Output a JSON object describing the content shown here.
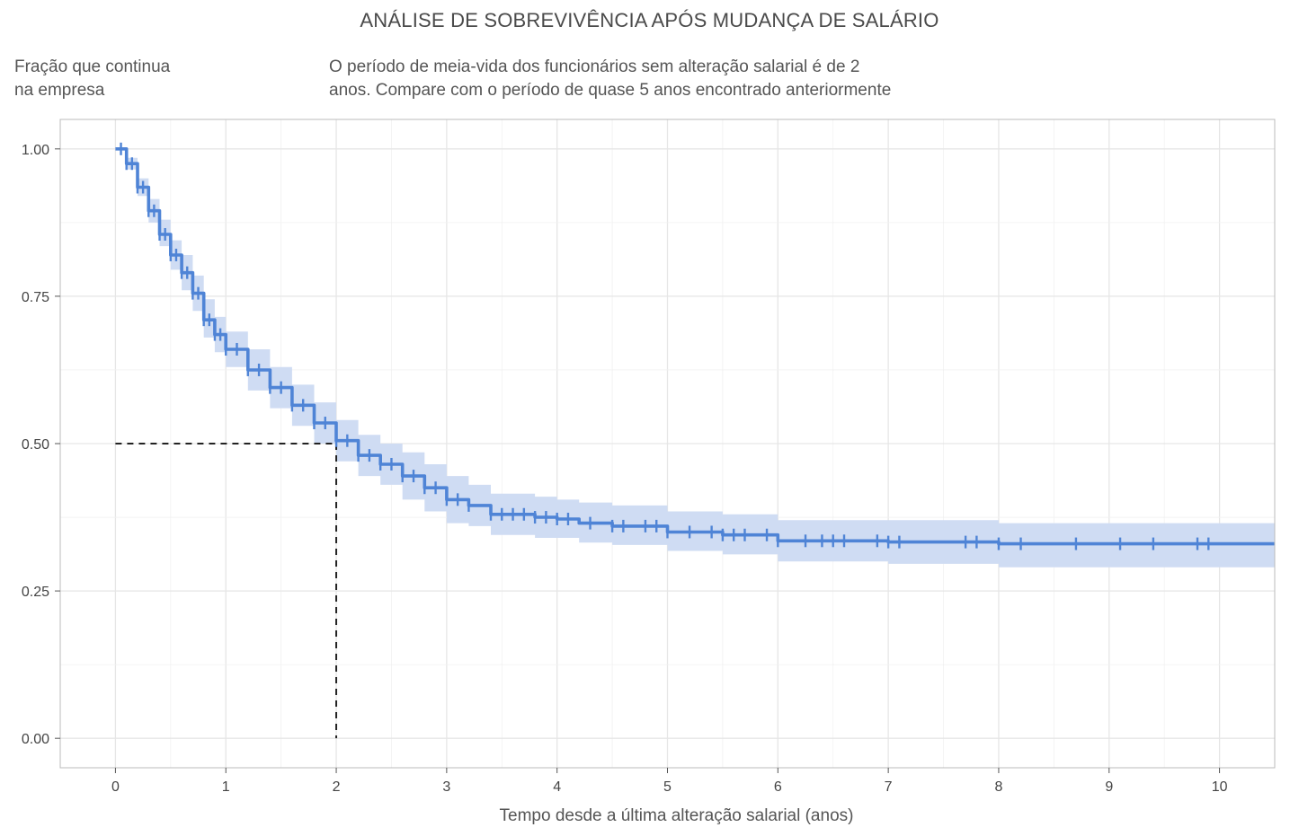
{
  "chart_data": {
    "type": "line",
    "title": "ANÁLISE DE SOBREVIVÊNCIA APÓS MUDANÇA DE SALÁRIO",
    "subtitle": "O período de meia-vida dos funcionários sem alteração salarial é de 2\nanos. Compare com o período de quase 5 anos encontrado anteriormente",
    "ylabel": "Fração que continua\nna empresa",
    "xlabel": "Tempo desde a última alteração salarial (anos)",
    "xlim": [
      -0.5,
      10.5
    ],
    "ylim": [
      -0.05,
      1.05
    ],
    "x_ticks": [
      0,
      1,
      2,
      3,
      4,
      5,
      6,
      7,
      8,
      9,
      10
    ],
    "x_tick_labels": [
      "0",
      "1",
      "2",
      "3",
      "4",
      "5",
      "6",
      "7",
      "8",
      "9",
      "10"
    ],
    "y_ticks": [
      0,
      0.25,
      0.5,
      0.75,
      1.0
    ],
    "y_tick_labels": [
      "0.00",
      "0.25",
      "0.50",
      "0.75",
      "1.00"
    ],
    "grid": true,
    "colors": {
      "line": "#4f84d6",
      "band": "#cfdcf3",
      "reference": "#222222",
      "grid": "#e6e6e6",
      "border": "#bbbbbb"
    },
    "series": [
      {
        "x": [
          0,
          0.1,
          0.2,
          0.3,
          0.4,
          0.5,
          0.6,
          0.7,
          0.8,
          0.9,
          1.0,
          1.2,
          1.4,
          1.6,
          1.8,
          2.0,
          2.2,
          2.4,
          2.6,
          2.8,
          3.0,
          3.2,
          3.4,
          3.6,
          3.8,
          4.0,
          4.2,
          4.5,
          5.0,
          5.5,
          6.0,
          6.5,
          7.0,
          7.5,
          8.0,
          9.0,
          10.0,
          10.5
        ],
        "y": [
          1.0,
          0.975,
          0.935,
          0.895,
          0.855,
          0.82,
          0.79,
          0.755,
          0.71,
          0.685,
          0.66,
          0.625,
          0.595,
          0.565,
          0.535,
          0.505,
          0.48,
          0.465,
          0.445,
          0.425,
          0.405,
          0.395,
          0.38,
          0.38,
          0.375,
          0.372,
          0.365,
          0.36,
          0.35,
          0.345,
          0.335,
          0.335,
          0.333,
          0.333,
          0.33,
          0.33,
          0.33,
          0.33
        ],
        "lower": [
          1.0,
          0.965,
          0.92,
          0.875,
          0.835,
          0.795,
          0.76,
          0.725,
          0.68,
          0.655,
          0.63,
          0.59,
          0.56,
          0.53,
          0.5,
          0.47,
          0.445,
          0.43,
          0.405,
          0.385,
          0.365,
          0.36,
          0.345,
          0.345,
          0.34,
          0.34,
          0.332,
          0.328,
          0.318,
          0.312,
          0.3,
          0.3,
          0.296,
          0.296,
          0.29,
          0.29,
          0.29,
          0.29
        ],
        "upper": [
          1.0,
          0.985,
          0.95,
          0.915,
          0.88,
          0.845,
          0.82,
          0.785,
          0.745,
          0.715,
          0.69,
          0.66,
          0.63,
          0.6,
          0.57,
          0.54,
          0.515,
          0.5,
          0.485,
          0.465,
          0.445,
          0.43,
          0.415,
          0.415,
          0.41,
          0.405,
          0.4,
          0.395,
          0.385,
          0.38,
          0.37,
          0.37,
          0.37,
          0.37,
          0.365,
          0.365,
          0.365,
          0.365
        ],
        "censor_x": [
          0.05,
          0.1,
          0.15,
          0.2,
          0.25,
          0.3,
          0.35,
          0.4,
          0.45,
          0.5,
          0.55,
          0.6,
          0.65,
          0.7,
          0.75,
          0.8,
          0.85,
          0.9,
          0.95,
          1.0,
          1.1,
          1.2,
          1.3,
          1.4,
          1.5,
          1.6,
          1.7,
          1.8,
          1.9,
          2.0,
          2.1,
          2.2,
          2.3,
          2.4,
          2.5,
          2.6,
          2.7,
          2.8,
          2.9,
          3.0,
          3.1,
          3.2,
          3.4,
          3.5,
          3.6,
          3.7,
          3.8,
          3.9,
          4.0,
          4.1,
          4.3,
          4.5,
          4.6,
          4.8,
          4.9,
          5.0,
          5.2,
          5.4,
          5.5,
          5.6,
          5.7,
          5.9,
          6.0,
          6.25,
          6.4,
          6.5,
          6.6,
          6.9,
          7.0,
          7.1,
          7.7,
          7.8,
          8.0,
          8.2,
          8.7,
          9.1,
          9.4,
          9.8,
          9.9
        ]
      }
    ],
    "reference": {
      "x": 2.0,
      "y": 0.5
    }
  }
}
